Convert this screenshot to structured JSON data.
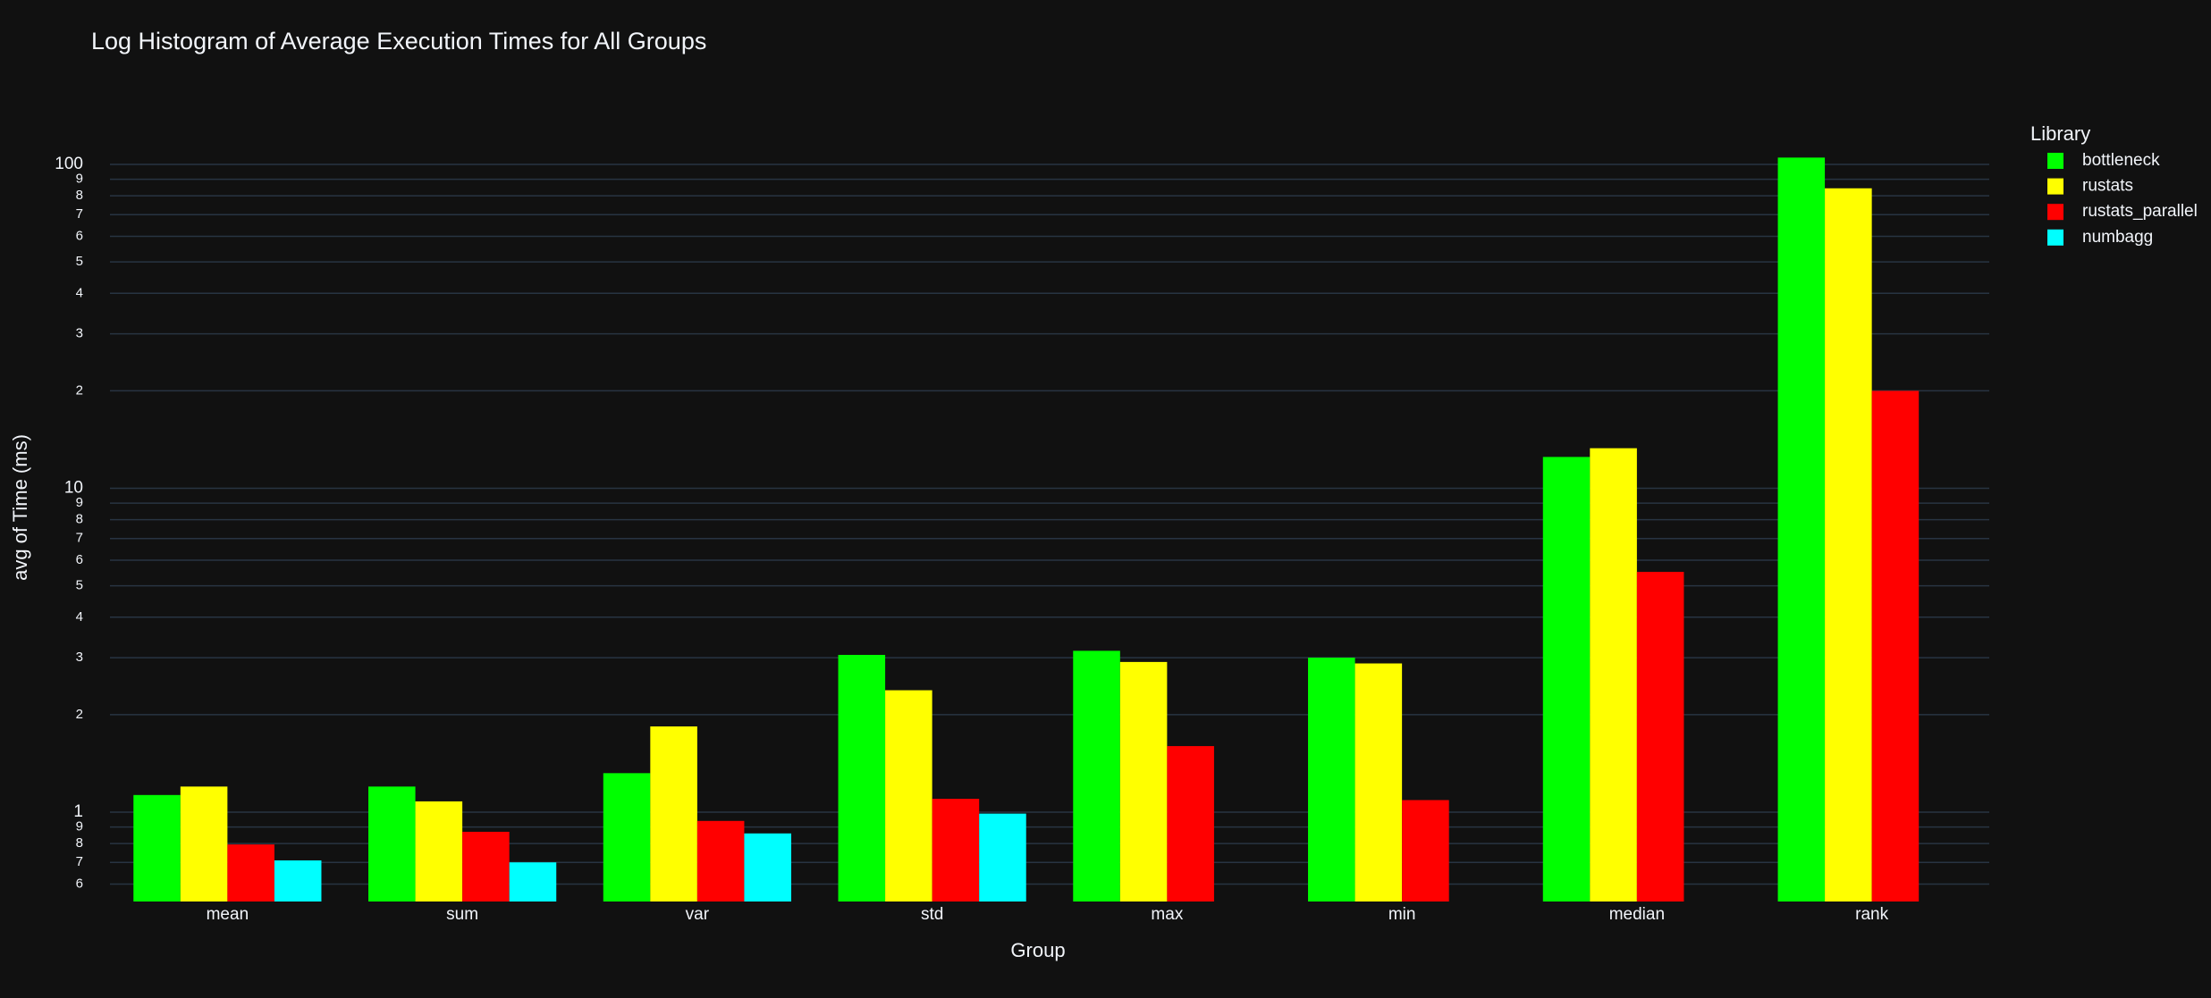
{
  "chart_data": {
    "type": "bar",
    "title": "Log Histogram of Average Execution Times for All Groups",
    "x_label": "Group",
    "y_label": "avg of Time (ms)",
    "legend_title": "Library",
    "legend_position": "right",
    "log_y": true,
    "grid": true,
    "categories": [
      "mean",
      "sum",
      "var",
      "std",
      "max",
      "min",
      "median",
      "rank"
    ],
    "series": [
      {
        "name": "bottleneck",
        "color": "#00ff00",
        "values": [
          1.13,
          1.2,
          1.32,
          3.06,
          3.15,
          3.0,
          12.5,
          105
        ]
      },
      {
        "name": "rustats",
        "color": "#ffff00",
        "values": [
          1.2,
          1.08,
          1.84,
          2.38,
          2.91,
          2.88,
          13.3,
          84.4
        ]
      },
      {
        "name": "rustats_parallel",
        "color": "#ff0000",
        "values": [
          0.795,
          0.87,
          0.94,
          1.1,
          1.6,
          1.09,
          5.52,
          20.0
        ]
      },
      {
        "name": "numbagg",
        "color": "#00ffff",
        "values": [
          0.71,
          0.7,
          0.86,
          0.99,
          null,
          null,
          null,
          null
        ]
      }
    ],
    "ylim": [
      0.53,
      118
    ],
    "yticks": [
      {
        "value": 0.6,
        "label": "6"
      },
      {
        "value": 0.7,
        "label": "7"
      },
      {
        "value": 0.8,
        "label": "8"
      },
      {
        "value": 0.9,
        "label": "9"
      },
      1,
      {
        "value": 2,
        "label": "2"
      },
      {
        "value": 3,
        "label": "3"
      },
      {
        "value": 4,
        "label": "4"
      },
      {
        "value": 5,
        "label": "5"
      },
      {
        "value": 6,
        "label": "6"
      },
      {
        "value": 7,
        "label": "7"
      },
      {
        "value": 8,
        "label": "8"
      },
      {
        "value": 9,
        "label": "9"
      },
      10,
      {
        "value": 20,
        "label": "2"
      },
      {
        "value": 30,
        "label": "3"
      },
      {
        "value": 40,
        "label": "4"
      },
      {
        "value": 50,
        "label": "5"
      },
      {
        "value": 60,
        "label": "6"
      },
      {
        "value": 70,
        "label": "7"
      },
      {
        "value": 80,
        "label": "8"
      },
      {
        "value": 90,
        "label": "9"
      },
      100
    ]
  }
}
